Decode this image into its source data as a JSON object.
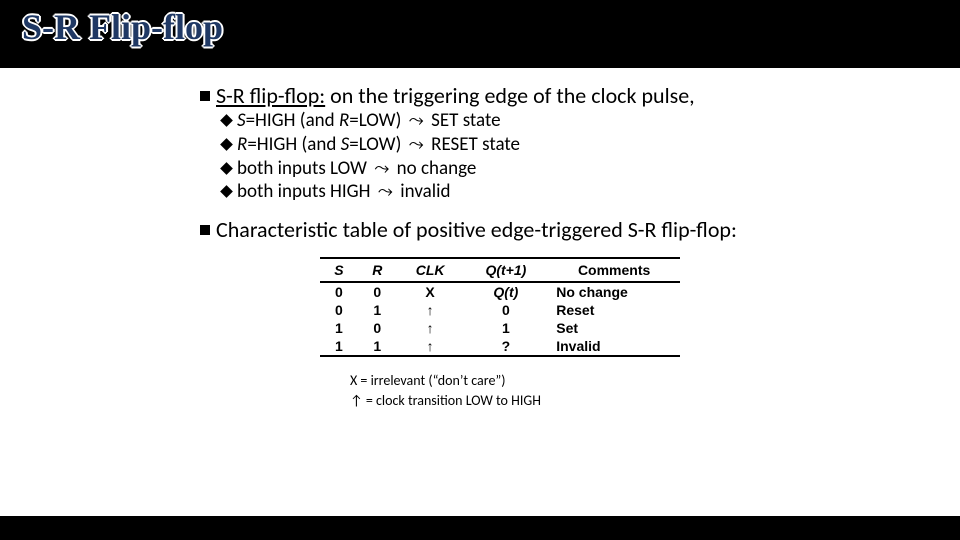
{
  "title": "S-R Flip-flop",
  "point1": {
    "underlined": "S-R flip-flop:",
    "rest": " on the triggering edge of the clock pulse,",
    "sub": [
      {
        "pre_italic": "S",
        "mid": "=HIGH (and ",
        "mid_italic": "R",
        "post": "=LOW) ",
        "arrow": "⤳",
        "tail": " SET state"
      },
      {
        "pre_italic": "R",
        "mid": "=HIGH (and ",
        "mid_italic": "S",
        "post": "=LOW) ",
        "arrow": "⤳",
        "tail": " RESET state"
      },
      {
        "pre_italic": "",
        "mid": "both inputs LOW ",
        "mid_italic": "",
        "post": "",
        "arrow": "⤳",
        "tail": " no change"
      },
      {
        "pre_italic": "",
        "mid": "both inputs HIGH ",
        "mid_italic": "",
        "post": "",
        "arrow": "⤳",
        "tail": " invalid"
      }
    ]
  },
  "point2": "Characteristic table of positive edge-triggered S-R flip-flop:",
  "table": {
    "headers": {
      "s": "S",
      "r": "R",
      "clk": "CLK",
      "q": "Q(t+1)",
      "comments": "Comments"
    },
    "rows": [
      {
        "s": "0",
        "r": "0",
        "clk": "X",
        "q": "Q(t)",
        "q_italic": true,
        "c": "No change"
      },
      {
        "s": "0",
        "r": "1",
        "clk": "↑",
        "q": "0",
        "q_italic": false,
        "c": "Reset"
      },
      {
        "s": "1",
        "r": "0",
        "clk": "↑",
        "q": "1",
        "q_italic": false,
        "c": "Set"
      },
      {
        "s": "1",
        "r": "1",
        "clk": "↑",
        "q": "?",
        "q_italic": false,
        "c": "Invalid"
      }
    ]
  },
  "legend": {
    "l1": "X = irrelevant (“don’t care”)",
    "l2_arrow": "↑",
    "l2_rest": " = clock transition LOW to HIGH"
  }
}
